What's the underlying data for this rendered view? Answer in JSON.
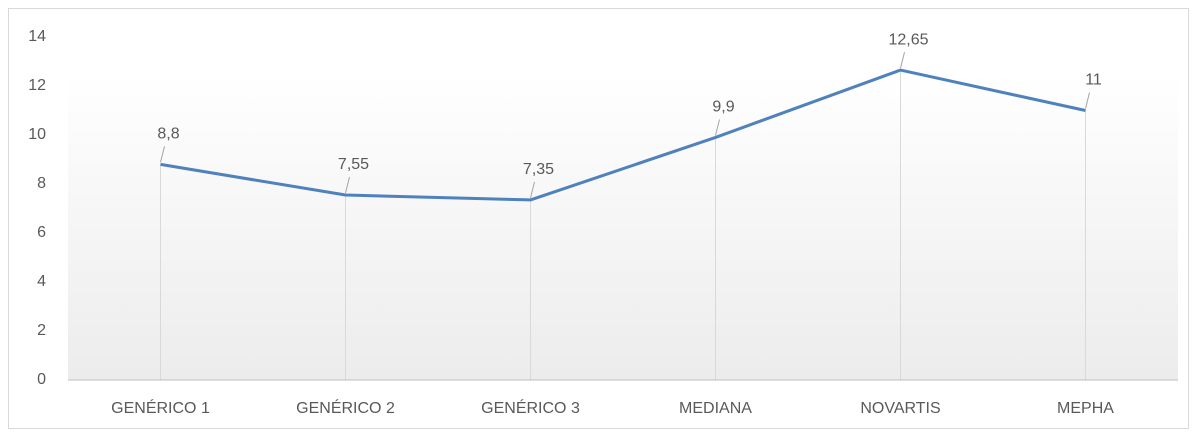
{
  "chart_data": {
    "type": "line",
    "categories": [
      "GENÉRICO 1",
      "GENÉRICO 2",
      "GENÉRICO 3",
      "MEDIANA",
      "NOVARTIS",
      "MEPHA"
    ],
    "series": [
      {
        "name": null,
        "color": "#4f81bd",
        "values": [
          8.8,
          7.55,
          7.35,
          9.9,
          12.65,
          11
        ],
        "value_labels": [
          "8,8",
          "7,55",
          "7,35",
          "9,9",
          "12,65",
          "11"
        ]
      }
    ],
    "ylim": [
      0,
      14
    ],
    "yticks": [
      0,
      2,
      4,
      6,
      8,
      10,
      12,
      14
    ],
    "grid": false
  }
}
